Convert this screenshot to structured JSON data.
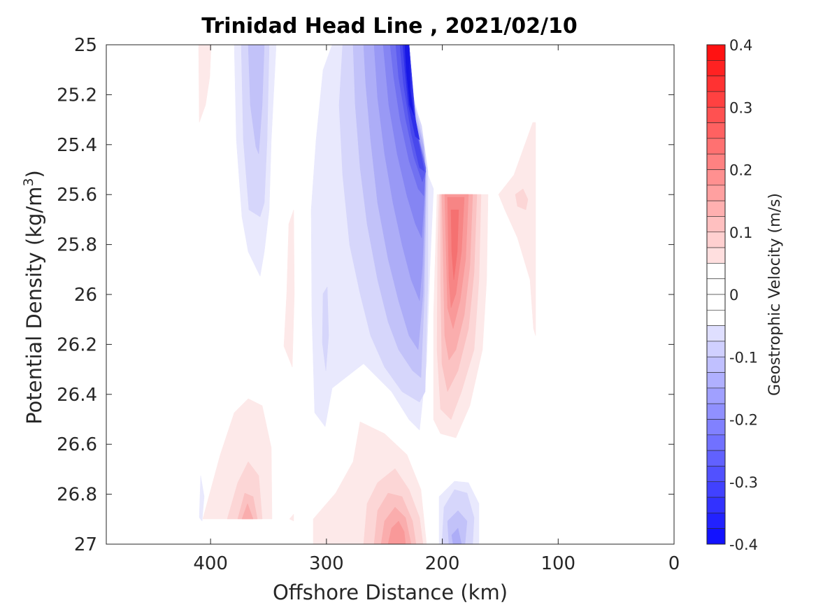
{
  "chart_data": {
    "type": "heatmap",
    "subtype": "filled-contour",
    "title": "Trinidad Head Line , 2021/02/10",
    "xlabel": "Offshore Distance (km)",
    "ylabel_main": "Potential Density (kg/m",
    "ylabel_sup": "3",
    "ylabel_close": ")",
    "xlim": [
      490,
      0
    ],
    "x_reversed": true,
    "ylim": [
      25,
      27
    ],
    "y_reversed": true,
    "x_ticks": [
      400,
      300,
      200,
      100,
      0
    ],
    "y_ticks": [
      25,
      25.2,
      25.4,
      25.6,
      25.8,
      26,
      26.2,
      26.4,
      26.6,
      26.8,
      27
    ],
    "y_tick_labels": [
      "25",
      "25.2",
      "25.4",
      "25.6",
      "25.8",
      "26",
      "26.2",
      "26.4",
      "26.6",
      "26.8",
      "27"
    ],
    "grid": false,
    "colorbar": {
      "label": "Geostrophic Velocity (m/s)",
      "range": [
        -0.4,
        0.4
      ],
      "levels": 32,
      "ticks": [
        0.4,
        0.3,
        0.2,
        0.1,
        0,
        -0.1,
        -0.2,
        -0.3,
        -0.4
      ],
      "tick_labels": [
        "0.4",
        "0.3",
        "0.2",
        "0.1",
        "0",
        "-0.1",
        "-0.2",
        "-0.3",
        "-0.4"
      ],
      "positive_color": "#ff0000",
      "negative_color": "#0000ff",
      "zero_color": "#ffffff"
    },
    "features": [
      {
        "sign": "negative",
        "peak": -0.4,
        "x_km": 235,
        "sigma": 25.0,
        "description": "strong southward jet at 25.0-25.4"
      },
      {
        "sign": "negative",
        "peak": -0.25,
        "x_km": 225,
        "sigma": 25.6
      },
      {
        "sign": "negative",
        "peak": -0.1,
        "x_km": 225,
        "sigma": 26.3
      },
      {
        "sign": "negative",
        "peak": -0.08,
        "x_km": 360,
        "sigma": 25.3
      },
      {
        "sign": "negative",
        "peak": -0.05,
        "x_km": 190,
        "sigma": 26.95
      },
      {
        "sign": "positive",
        "peak": 0.17,
        "x_km": 190,
        "sigma": 26.0
      },
      {
        "sign": "positive",
        "peak": 0.12,
        "x_km": 235,
        "sigma": 26.95
      },
      {
        "sign": "positive",
        "peak": 0.05,
        "x_km": 355,
        "sigma": 26.85
      },
      {
        "sign": "positive",
        "peak": 0.03,
        "x_km": 130,
        "sigma": 25.6
      }
    ]
  }
}
